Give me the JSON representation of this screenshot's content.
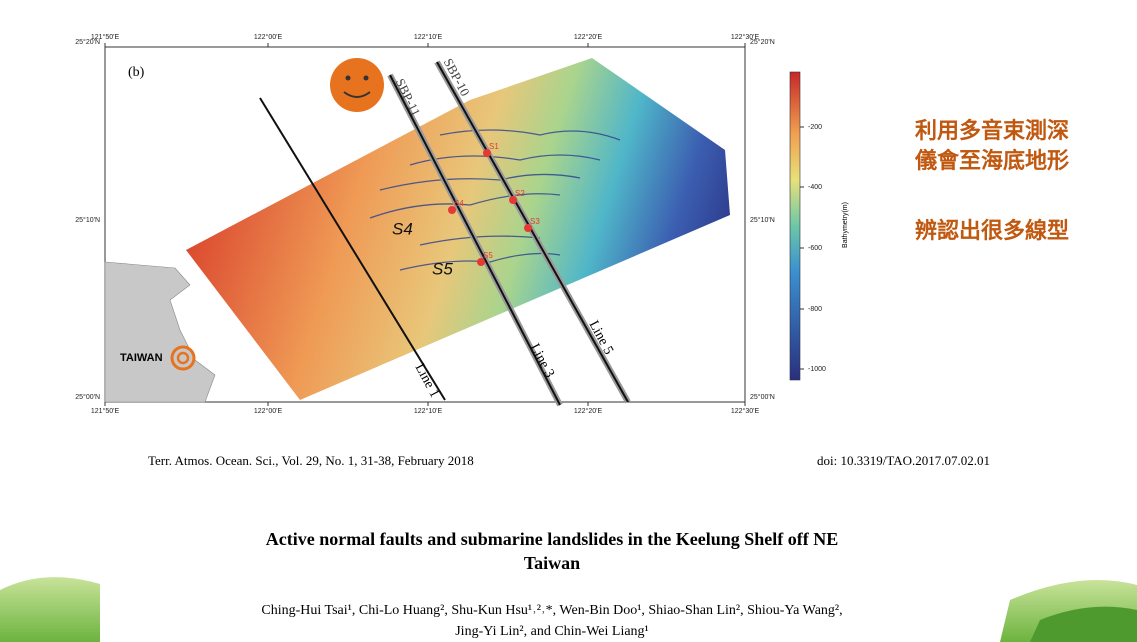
{
  "figure": {
    "panel": "(b)",
    "lon_ticks": [
      "121°50'E",
      "122°00'E",
      "122°10'E",
      "122°20'E",
      "122°30'E"
    ],
    "lat_ticks": [
      "25°20'N",
      "25°10'N",
      "25°00'N"
    ],
    "colorbar": {
      "label": "Bathymetry(m)",
      "ticks": [
        -200,
        -400,
        -600,
        -800,
        -1000
      ]
    },
    "lines": [
      "Line 1",
      "Line 3",
      "Line 5"
    ],
    "profiles": [
      "SBP-11",
      "SBP-10"
    ],
    "sites": [
      "S1",
      "S2",
      "S3",
      "S4",
      "S5"
    ],
    "annotations": [
      "S4",
      "S5"
    ],
    "land_label": "TAIWAN"
  },
  "slide_text": [
    "利用多音束測深",
    "儀會至海底地形",
    "辨認出很多線型"
  ],
  "paper": {
    "citation": "Terr. Atmos. Ocean. Sci., Vol. 29, No. 1, 31-38, February 2018",
    "doi": "doi: 10.3319/TAO.2017.07.02.01",
    "title": [
      "Active normal faults and submarine landslides in the Keelung Shelf off NE",
      "Taiwan"
    ],
    "authors": [
      "Ching-Hui Tsai¹, Chi-Lo Huang², Shu-Kun Hsu¹˒²˒*, Wen-Bin Doo¹, Shiao-Shan Lin², Shiou-Ya Wang²,",
      "Jing-Yi Lin², and Chin-Wei Liang¹"
    ]
  }
}
